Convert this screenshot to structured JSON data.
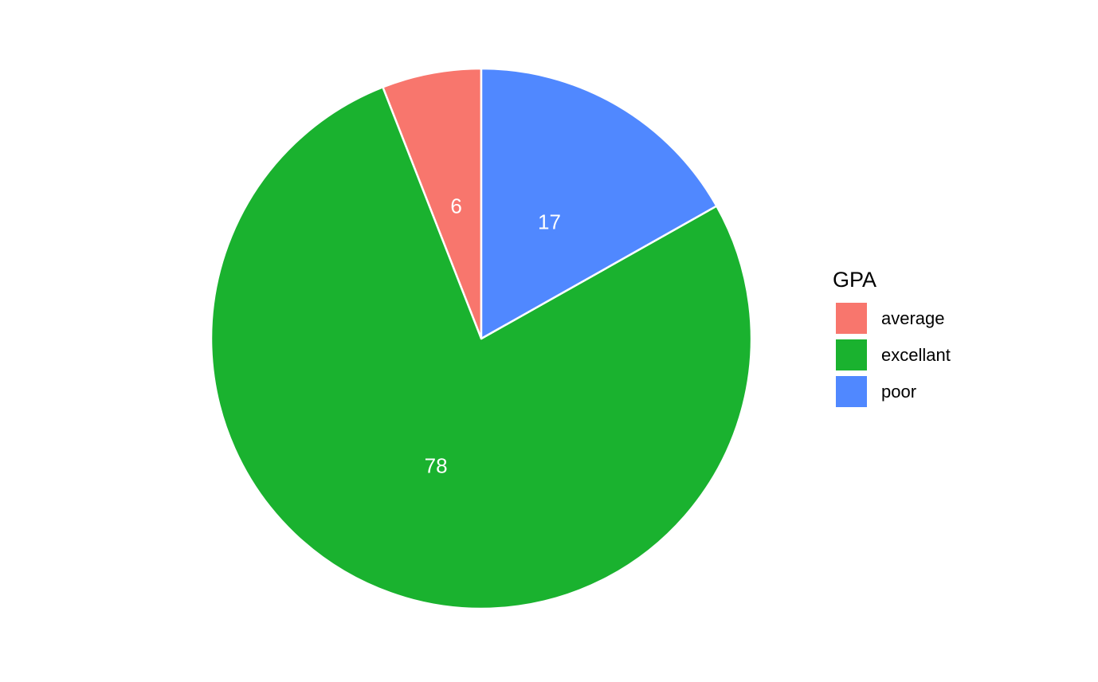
{
  "chart_data": {
    "type": "pie",
    "title": "",
    "legend": {
      "title": "GPA",
      "placement": "right"
    },
    "slices": [
      {
        "category": "average",
        "value": 6,
        "label": "6",
        "color": "#F8766D"
      },
      {
        "category": "excellant",
        "value": 78,
        "label": "78",
        "color": "#1AB22F"
      },
      {
        "category": "poor",
        "value": 17,
        "label": "17",
        "color": "#5088FF"
      }
    ],
    "start_angle": "12 o'clock",
    "direction": "counter-clockwise from top: average, excellant, poor",
    "slice_border_color": "#FFFFFF"
  }
}
